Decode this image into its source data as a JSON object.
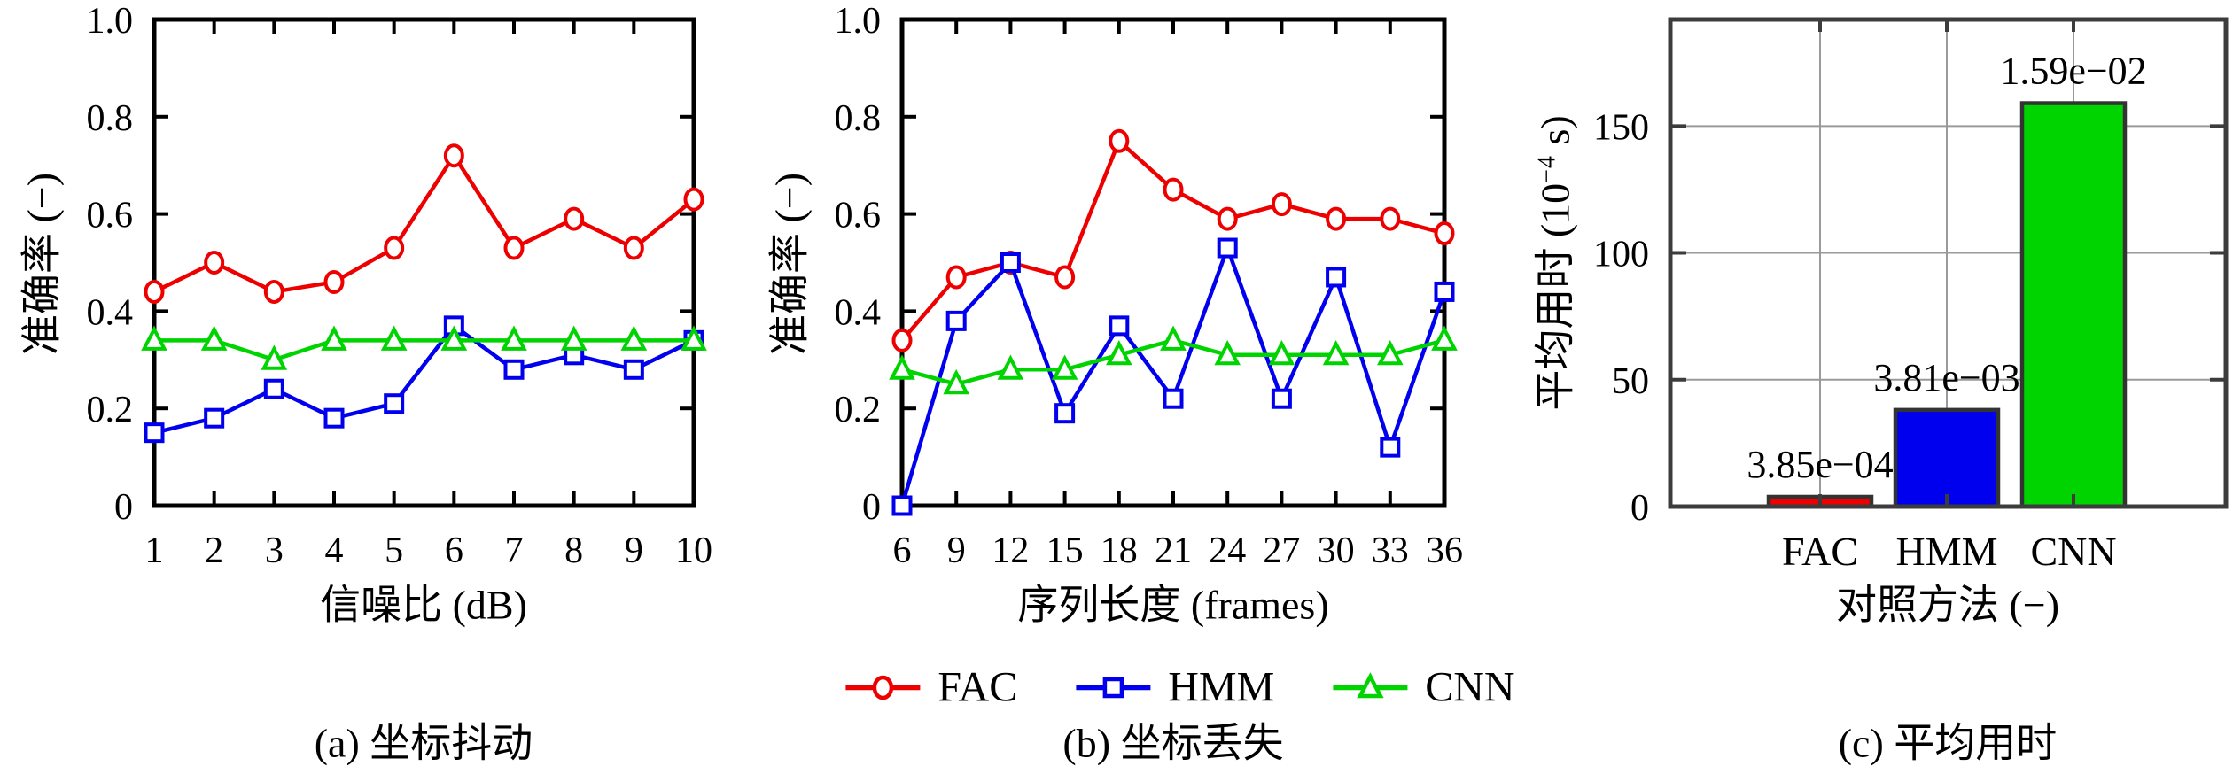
{
  "figure": {
    "background": "#ffffff",
    "axis_color_line_charts": "#000000",
    "axis_color_bar_chart": "#3c3c3c",
    "grid_color": "#9a9a9a"
  },
  "legend": {
    "items": [
      {
        "label": "FAC",
        "marker": "circle",
        "color": "#ee0000"
      },
      {
        "label": "HMM",
        "marker": "square",
        "color": "#0000ee"
      },
      {
        "label": "CNN",
        "marker": "triangle",
        "color": "#00d400"
      }
    ]
  },
  "chart_data": [
    {
      "type": "line",
      "title": "(a) 坐标抖动",
      "xlabel": "信噪比 (dB)",
      "ylabel": "准确率 (−)",
      "xlim": [
        1,
        10
      ],
      "ylim": [
        0,
        1
      ],
      "xticks": [
        1,
        2,
        3,
        4,
        5,
        6,
        7,
        8,
        9,
        10
      ],
      "yticks": [
        0,
        0.2,
        0.4,
        0.6,
        0.8,
        1
      ],
      "ytick_labels": [
        "0",
        "0.2",
        "0.4",
        "0.6",
        "0.8",
        "1.0"
      ],
      "grid": false,
      "x": [
        1,
        2,
        3,
        4,
        5,
        6,
        7,
        8,
        9,
        10
      ],
      "series": [
        {
          "name": "FAC",
          "marker": "circle",
          "color": "#ee0000",
          "values": [
            0.44,
            0.5,
            0.44,
            0.46,
            0.53,
            0.72,
            0.53,
            0.59,
            0.53,
            0.63
          ]
        },
        {
          "name": "HMM",
          "marker": "square",
          "color": "#0000ee",
          "values": [
            0.15,
            0.18,
            0.24,
            0.18,
            0.21,
            0.37,
            0.28,
            0.31,
            0.28,
            0.34
          ]
        },
        {
          "name": "CNN",
          "marker": "triangle",
          "color": "#00d400",
          "values": [
            0.34,
            0.34,
            0.3,
            0.34,
            0.34,
            0.34,
            0.34,
            0.34,
            0.34,
            0.34
          ]
        }
      ]
    },
    {
      "type": "line",
      "title": "(b) 坐标丢失",
      "xlabel": "序列长度 (frames)",
      "ylabel": "准确率 (−)",
      "xlim": [
        6,
        36
      ],
      "ylim": [
        0,
        1
      ],
      "xticks": [
        6,
        9,
        12,
        15,
        18,
        21,
        24,
        27,
        30,
        33,
        36
      ],
      "yticks": [
        0,
        0.2,
        0.4,
        0.6,
        0.8,
        1
      ],
      "ytick_labels": [
        "0",
        "0.2",
        "0.4",
        "0.6",
        "0.8",
        "1.0"
      ],
      "grid": false,
      "x": [
        6,
        9,
        12,
        15,
        18,
        21,
        24,
        27,
        30,
        33,
        36
      ],
      "series": [
        {
          "name": "FAC",
          "marker": "circle",
          "color": "#ee0000",
          "values": [
            0.34,
            0.47,
            0.5,
            0.47,
            0.75,
            0.65,
            0.59,
            0.62,
            0.59,
            0.59,
            0.56
          ]
        },
        {
          "name": "HMM",
          "marker": "square",
          "color": "#0000ee",
          "values": [
            0.0,
            0.38,
            0.5,
            0.19,
            0.37,
            0.22,
            0.53,
            0.22,
            0.47,
            0.12,
            0.44
          ]
        },
        {
          "name": "CNN",
          "marker": "triangle",
          "color": "#00d400",
          "values": [
            0.28,
            0.25,
            0.28,
            0.28,
            0.31,
            0.34,
            0.31,
            0.31,
            0.31,
            0.31,
            0.34
          ]
        }
      ]
    },
    {
      "type": "bar",
      "title": "(c) 平均用时",
      "xlabel": "对照方法 (−)",
      "ylabel": "平均用时 (10⁻⁴ s)",
      "ylabel_parts": {
        "prefix": "平均用时 (10",
        "sup": "−4",
        "suffix": " s)"
      },
      "categories": [
        "FAC",
        "HMM",
        "CNN"
      ],
      "values": [
        3.85,
        38.1,
        159
      ],
      "value_unit": "10⁻⁴ s",
      "annotations": [
        "3.85e−04",
        "3.81e−03",
        "1.59e−02"
      ],
      "colors": [
        "#ee0000",
        "#0000ee",
        "#00d400"
      ],
      "yticks": [
        0,
        50,
        100,
        150
      ],
      "ytick_labels": [
        "0",
        "50",
        "100",
        "150"
      ],
      "ylim": [
        0,
        192
      ],
      "grid": true
    }
  ]
}
